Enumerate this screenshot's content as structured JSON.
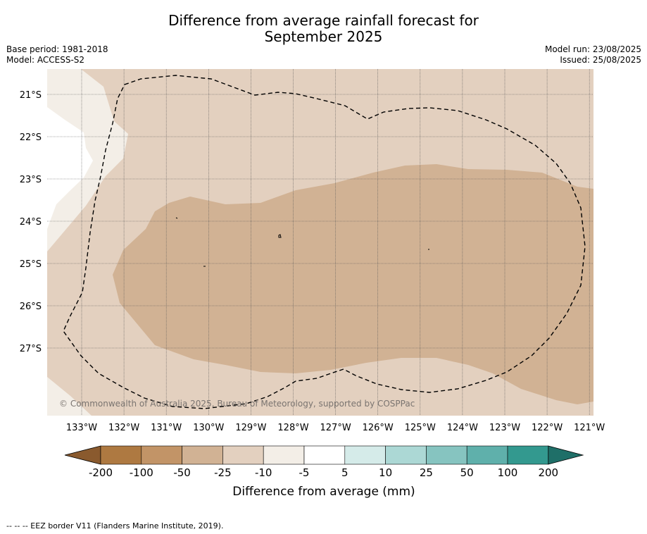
{
  "title_line1": "Difference from average rainfall forecast for",
  "title_line2": "September 2025",
  "meta_left": {
    "base_period": "Base period: 1981-2018",
    "model": "Model: ACCESS-S2"
  },
  "meta_right": {
    "model_run": "Model run: 23/08/2025",
    "issued": "Issued: 25/08/2025"
  },
  "map": {
    "lat_labels": [
      "21°S",
      "22°S",
      "23°S",
      "24°S",
      "25°S",
      "26°S",
      "27°S"
    ],
    "lon_labels": [
      "133°W",
      "132°W",
      "131°W",
      "130°W",
      "129°W",
      "128°W",
      "127°W",
      "126°W",
      "125°W",
      "124°W",
      "123°W",
      "122°W",
      "121°W"
    ],
    "copyright": "© Commonwealth of Australia 2025, Bureau of Meteorology, supported by COSPPac",
    "zone_colors": {
      "minus_10_to_minus_5": "#f3eee7",
      "minus_25_to_minus_10": "#e3d0bf",
      "minus_50_to_minus_25": "#d1b294",
      "minus_5_to_5": "#ffffff"
    }
  },
  "colorbar": {
    "labels": [
      "-200",
      "-100",
      "-50",
      "-25",
      "-10",
      "-5",
      "5",
      "10",
      "25",
      "50",
      "100",
      "200"
    ],
    "colors": [
      "#8a5a2e",
      "#ae7941",
      "#c29467",
      "#d1b294",
      "#e3d0bf",
      "#f3eee7",
      "#ffffff",
      "#d5ebe9",
      "#acd8d5",
      "#86c4c0",
      "#5fb0ab",
      "#33998f",
      "#1f6f68"
    ],
    "title": "Difference from average (mm)"
  },
  "footer": "-- -- -- EEZ border V11 (Flanders Marine Institute, 2019)."
}
